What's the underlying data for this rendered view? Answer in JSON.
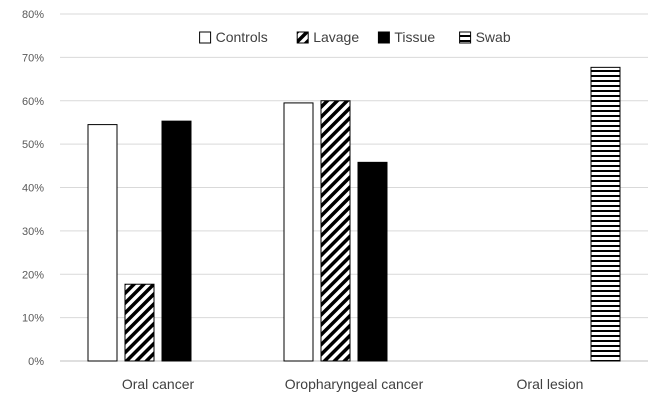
{
  "chart_data": {
    "type": "bar",
    "title": "",
    "xlabel": "",
    "ylabel": "",
    "ylim": [
      0,
      80
    ],
    "y_unit": "%",
    "y_ticks": [
      "0%",
      "10%",
      "20%",
      "30%",
      "40%",
      "50%",
      "60%",
      "70%",
      "80%"
    ],
    "categories": [
      "Oral cancer",
      "Oropharyngeal cancer",
      "Oral lesion"
    ],
    "series": [
      {
        "name": "Controls",
        "pattern": "outline",
        "values": [
          54.5,
          59.5,
          null
        ]
      },
      {
        "name": "Lavage",
        "pattern": "diagonal",
        "values": [
          17.7,
          60.0,
          null
        ]
      },
      {
        "name": "Tissue",
        "pattern": "solid",
        "values": [
          55.3,
          45.8,
          null
        ]
      },
      {
        "name": "Swab",
        "pattern": "horizontal",
        "values": [
          null,
          null,
          67.7
        ]
      }
    ],
    "grid": true,
    "legend_position": "top-center",
    "colors": {
      "bar_fill": "#000000",
      "bar_outline": "#000000",
      "grid": "#d9d9d9",
      "text": "#404040"
    }
  }
}
